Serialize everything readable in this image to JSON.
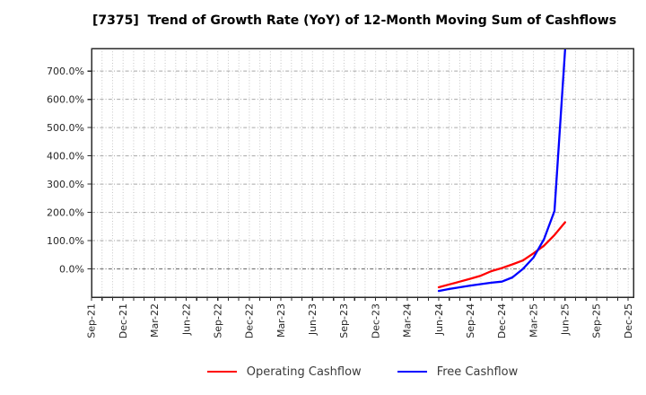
{
  "chart_data": {
    "type": "line",
    "title": "[7375]  Trend of Growth Rate (YoY) of 12-Month Moving Sum of Cashflows",
    "x_axis": {
      "start_month": "Sep-21",
      "end_month": "Dec-25",
      "tick_labels": [
        "Sep-21",
        "Dec-21",
        "Mar-22",
        "Jun-22",
        "Sep-22",
        "Dec-22",
        "Mar-23",
        "Jun-23",
        "Sep-23",
        "Dec-23",
        "Mar-24",
        "Jun-24",
        "Sep-24",
        "Dec-24",
        "Mar-25",
        "Jun-25",
        "Sep-25",
        "Dec-25"
      ],
      "tick_interval_months": 3,
      "minor_gridline_interval_months": 1
    },
    "y_axis": {
      "tick_labels": [
        "0.0%",
        "100.0%",
        "200.0%",
        "300.0%",
        "400.0%",
        "500.0%",
        "600.0%",
        "700.0%"
      ],
      "tick_values": [
        0,
        100,
        200,
        300,
        400,
        500,
        600,
        700
      ],
      "unit": "%",
      "ylim": [
        -100,
        780
      ]
    },
    "x": [
      "Jun-24",
      "Jul-24",
      "Aug-24",
      "Sep-24",
      "Oct-24",
      "Nov-24",
      "Dec-24",
      "Jan-25",
      "Feb-25",
      "Mar-25",
      "Apr-25",
      "May-25",
      "Jun-25"
    ],
    "series": [
      {
        "name": "Operating Cashflow",
        "color": "#ff0000",
        "values": [
          -65,
          -55,
          -45,
          -35,
          -24,
          -8,
          3,
          16,
          30,
          55,
          82,
          120,
          165
        ]
      },
      {
        "name": "Free Cashflow",
        "color": "#0000ff",
        "values": [
          -78,
          -71,
          -65,
          -59,
          -54,
          -49,
          -45,
          -30,
          0,
          40,
          105,
          205,
          775
        ]
      }
    ],
    "legend": {
      "position": "bottom-center",
      "entries": [
        "Operating Cashflow",
        "Free Cashflow"
      ]
    },
    "grid": {
      "shown": true
    }
  }
}
